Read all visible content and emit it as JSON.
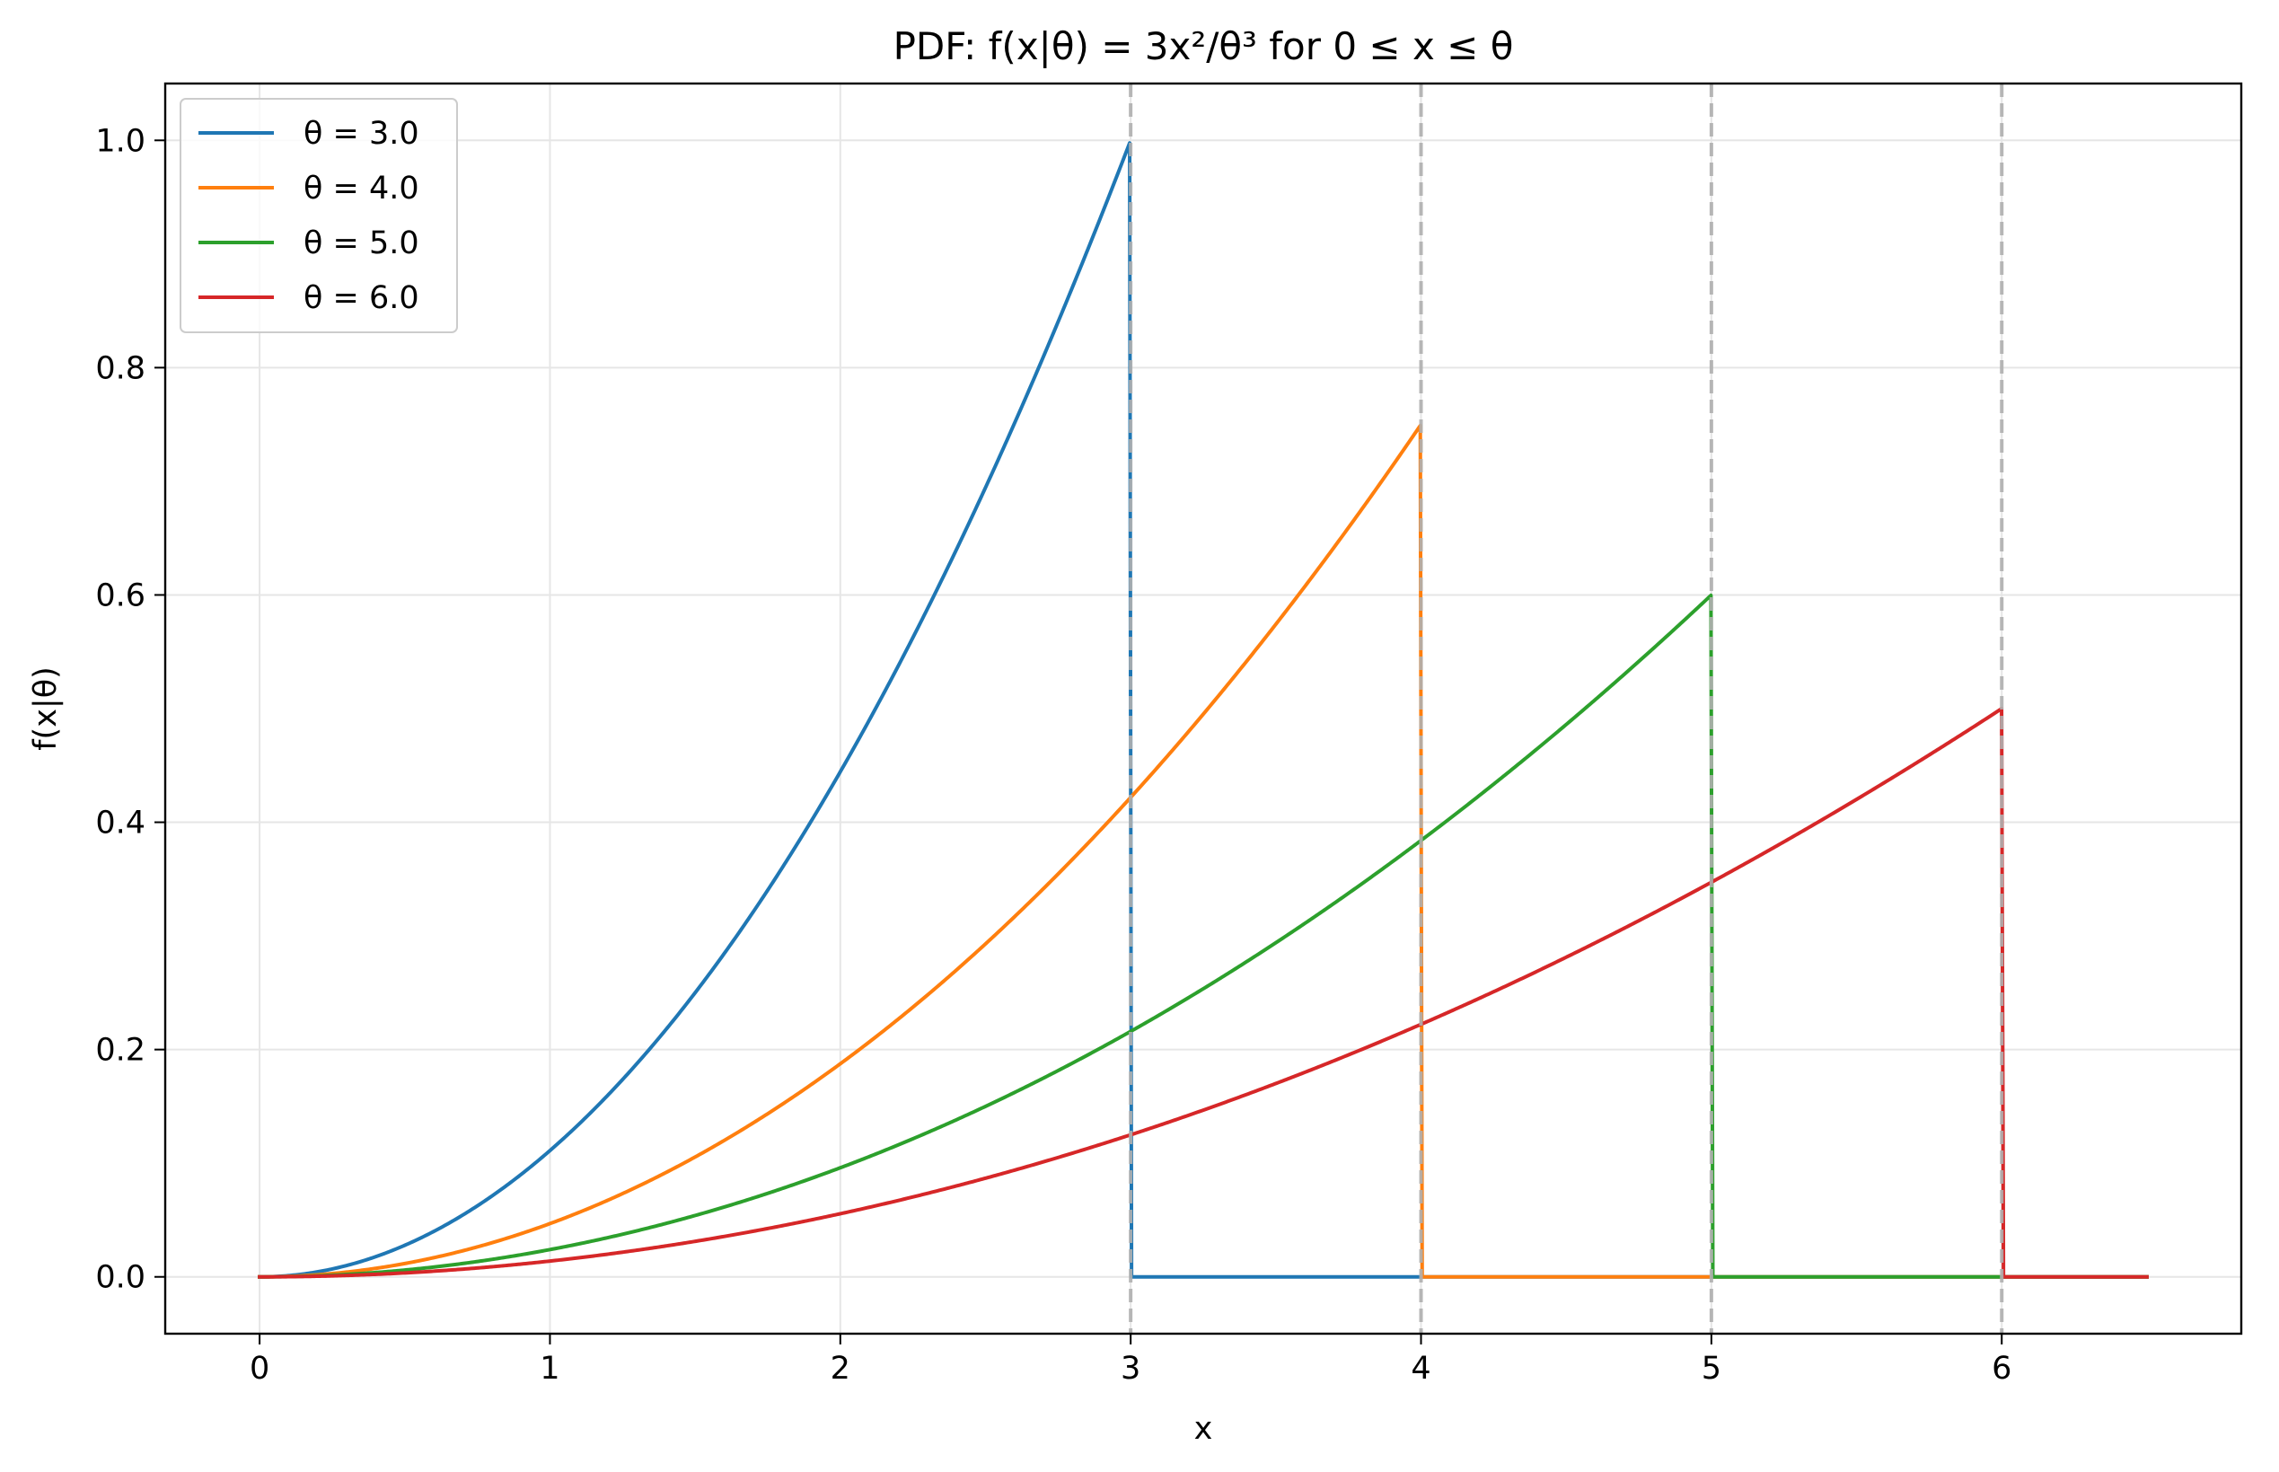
{
  "chart_data": {
    "type": "line",
    "title": "PDF: f(x|θ) = 3x²/θ³ for 0 ≤ x ≤ θ",
    "xlabel": "x",
    "ylabel": "f(x|θ)",
    "xlim": [
      -0.325,
      6.825
    ],
    "ylim": [
      -0.05,
      1.05
    ],
    "x_range": [
      0,
      6.5
    ],
    "xticks": [
      0,
      1,
      2,
      3,
      4,
      5,
      6
    ],
    "xtick_labels": [
      "0",
      "1",
      "2",
      "3",
      "4",
      "5",
      "6"
    ],
    "yticks": [
      0.0,
      0.2,
      0.4,
      0.6,
      0.8,
      1.0
    ],
    "ytick_labels": [
      "0.0",
      "0.2",
      "0.4",
      "0.6",
      "0.8",
      "1.0"
    ],
    "grid": true,
    "legend_position": "upper left",
    "series": [
      {
        "name": "θ = 3.0",
        "theta": 3.0,
        "color": "#1f77b4"
      },
      {
        "name": "θ = 4.0",
        "theta": 4.0,
        "color": "#ff7f0e"
      },
      {
        "name": "θ = 5.0",
        "theta": 5.0,
        "color": "#2ca02c"
      },
      {
        "name": "θ = 6.0",
        "theta": 6.0,
        "color": "#d62728"
      }
    ],
    "vertical_lines": [
      3,
      4,
      5,
      6
    ],
    "vertical_line_style": {
      "color": "#b0b0b0",
      "dashed": true
    }
  }
}
